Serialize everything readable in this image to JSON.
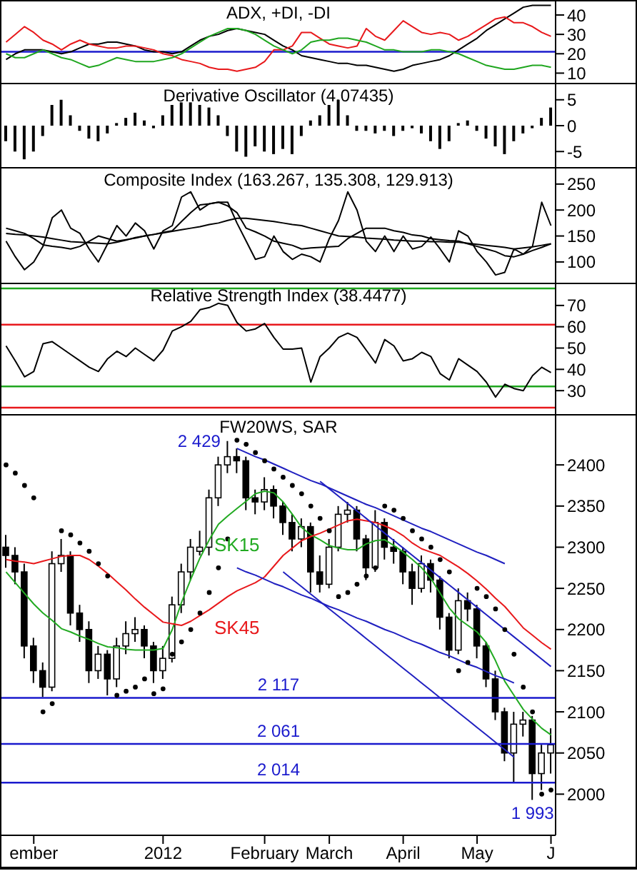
{
  "chart_data": [
    {
      "type": "line",
      "title": "ADX, +DI, -DI",
      "categories": [
        null,
        null,
        null,
        null,
        null,
        null,
        null,
        null,
        null,
        null,
        null,
        null,
        null,
        null,
        null,
        null,
        null,
        null,
        null,
        null,
        null,
        null,
        null,
        null,
        null,
        null,
        null,
        null,
        null,
        null,
        null,
        null,
        null,
        null,
        null,
        null,
        null,
        null,
        null,
        null,
        null,
        null,
        null,
        null,
        null,
        null,
        null,
        null,
        null,
        null,
        null,
        null,
        null,
        null,
        null,
        null,
        null,
        null,
        null,
        null
      ],
      "ylim": [
        5,
        47
      ],
      "yticks": [
        10,
        20,
        30,
        40
      ],
      "tick_labels": "y",
      "ref_lines": [
        {
          "axis": "y",
          "value": 21,
          "color": "#1a1acd"
        }
      ],
      "series": [
        {
          "color": "#000000",
          "values": [
            17,
            20,
            22,
            22,
            22,
            21,
            20,
            21,
            23,
            25,
            25,
            26,
            26,
            25,
            24,
            22,
            21,
            21,
            20,
            21,
            24,
            27,
            29,
            30,
            32,
            33,
            32,
            31,
            30,
            27,
            24,
            22,
            19,
            18,
            17,
            16,
            15,
            15,
            14,
            14,
            13,
            12,
            11,
            12,
            14,
            15,
            16,
            17,
            19,
            22,
            25,
            28,
            32,
            35,
            38,
            41,
            44,
            45,
            45,
            45
          ]
        },
        {
          "color": "#e8191c",
          "values": [
            26,
            30,
            34,
            31,
            27,
            25,
            22,
            25,
            27,
            25,
            24,
            23,
            23,
            24,
            24,
            23,
            22,
            20,
            19,
            17,
            16,
            15,
            13,
            12,
            12,
            11,
            12,
            13,
            16,
            22,
            22,
            24,
            31,
            31,
            28,
            25,
            24,
            23,
            24,
            33,
            29,
            27,
            32,
            37,
            34,
            31,
            30,
            31,
            30,
            27,
            29,
            32,
            35,
            38,
            39,
            36,
            36,
            34,
            31,
            29
          ]
        },
        {
          "color": "#1fa61f",
          "values": [
            20,
            18,
            18,
            20,
            22,
            20,
            18,
            17,
            15,
            13,
            14,
            16,
            18,
            17,
            16,
            16,
            16,
            17,
            18,
            20,
            23,
            26,
            29,
            31,
            33,
            33,
            32,
            30,
            27,
            24,
            22,
            20,
            22,
            26,
            27,
            27,
            28,
            28,
            27,
            26,
            24,
            22,
            22,
            21,
            21,
            21,
            22,
            22,
            21,
            20,
            18,
            16,
            14,
            13,
            12,
            12,
            13,
            14,
            14,
            13
          ]
        }
      ]
    },
    {
      "type": "bar",
      "title": "Derivative Oscillator (4.07435)",
      "categories": [
        null,
        null,
        null,
        null,
        null,
        null,
        null,
        null,
        null,
        null,
        null,
        null,
        null,
        null,
        null,
        null,
        null,
        null,
        null,
        null,
        null,
        null,
        null,
        null,
        null,
        null,
        null,
        null,
        null,
        null,
        null,
        null,
        null,
        null,
        null,
        null,
        null,
        null,
        null,
        null,
        null,
        null,
        null,
        null,
        null,
        null,
        null,
        null,
        null,
        null,
        null,
        null,
        null,
        null,
        null,
        null,
        null,
        null,
        null,
        null
      ],
      "ylim": [
        -8,
        8
      ],
      "yticks": [
        -5,
        0,
        5
      ],
      "tick_labels": "y",
      "color": "#000000",
      "values": [
        -3,
        -5,
        -6.5,
        -5,
        -2,
        4,
        5,
        2,
        -1,
        -2.5,
        -3,
        -1.5,
        0.5,
        1.5,
        2.5,
        1,
        -0.5,
        2,
        4,
        4.5,
        4.5,
        4,
        3.5,
        2,
        -2,
        -5,
        -6,
        -4,
        -5,
        -5.5,
        -4.5,
        -5.5,
        -2,
        1,
        2,
        4,
        5,
        2,
        -1,
        -1,
        -1.5,
        -1,
        -2,
        -1,
        -0.5,
        -1.5,
        -3,
        -4.5,
        -3,
        0.5,
        1,
        -1,
        -2.5,
        -4,
        -5.5,
        -3,
        -1.5,
        -0.5,
        1.5,
        3.5
      ]
    },
    {
      "type": "line",
      "title": "Composite Index (163.267, 135.308, 129.913)",
      "categories": [
        null,
        null,
        null,
        null,
        null,
        null,
        null,
        null,
        null,
        null,
        null,
        null,
        null,
        null,
        null,
        null,
        null,
        null,
        null,
        null,
        null,
        null,
        null,
        null,
        null,
        null,
        null,
        null,
        null,
        null,
        null,
        null,
        null,
        null,
        null,
        null,
        null,
        null,
        null,
        null,
        null,
        null,
        null,
        null,
        null,
        null,
        null,
        null,
        null,
        null,
        null,
        null,
        null,
        null,
        null,
        null,
        null,
        null,
        null,
        null
      ],
      "ylim": [
        60,
        280
      ],
      "yticks": [
        100,
        150,
        200,
        250
      ],
      "tick_labels": "y",
      "series": [
        {
          "color": "#000000",
          "values": [
            140,
            110,
            85,
            100,
            130,
            185,
            200,
            165,
            155,
            125,
            100,
            135,
            170,
            150,
            175,
            160,
            125,
            160,
            170,
            225,
            235,
            200,
            212,
            215,
            215,
            175,
            140,
            105,
            110,
            150,
            120,
            105,
            115,
            110,
            100,
            145,
            180,
            235,
            200,
            140,
            120,
            150,
            120,
            150,
            125,
            130,
            148,
            125,
            100,
            160,
            150,
            120,
            100,
            75,
            80,
            125,
            115,
            130,
            215,
            170
          ]
        },
        {
          "color": "#000000",
          "values": [
            165,
            160,
            155,
            145,
            133,
            130,
            128,
            125,
            130,
            140,
            150,
            145,
            140,
            143,
            146,
            150,
            153,
            157,
            160,
            178,
            195,
            210,
            212,
            215,
            208,
            195,
            165,
            158,
            150,
            140,
            136,
            132,
            125,
            127,
            128,
            129,
            130,
            145,
            155,
            165,
            165,
            165,
            160,
            157,
            152,
            150,
            145,
            143,
            141,
            140,
            135,
            130,
            125,
            120,
            112,
            110,
            115,
            122,
            128,
            135
          ]
        },
        {
          "color": "#000000",
          "values": [
            155,
            153,
            152,
            150,
            148,
            145,
            142,
            139,
            138,
            137,
            136,
            135,
            138,
            142,
            147,
            150,
            153,
            156,
            159,
            162,
            165,
            168,
            172,
            175,
            180,
            184,
            184,
            182,
            180,
            178,
            175,
            172,
            170,
            165,
            160,
            155,
            150,
            149,
            148,
            146,
            145,
            144,
            142,
            141,
            140,
            140,
            139,
            139,
            138,
            138,
            136,
            134,
            132,
            130,
            128,
            125,
            127,
            129,
            132,
            135
          ]
        }
      ]
    },
    {
      "type": "line",
      "title": "Relative Strength Index (38.4477)",
      "categories": [
        null,
        null,
        null,
        null,
        null,
        null,
        null,
        null,
        null,
        null,
        null,
        null,
        null,
        null,
        null,
        null,
        null,
        null,
        null,
        null,
        null,
        null,
        null,
        null,
        null,
        null,
        null,
        null,
        null,
        null,
        null,
        null,
        null,
        null,
        null,
        null,
        null,
        null,
        null,
        null,
        null,
        null,
        null,
        null,
        null,
        null,
        null,
        null,
        null,
        null,
        null,
        null,
        null,
        null,
        null,
        null,
        null,
        null,
        null,
        null
      ],
      "ylim": [
        19,
        80
      ],
      "yticks": [
        30,
        40,
        50,
        60,
        70
      ],
      "tick_labels": "y",
      "color": "#000000",
      "ref_lines": [
        {
          "axis": "y",
          "value": 78,
          "color": "#1fa61f"
        },
        {
          "axis": "y",
          "value": 61,
          "color": "#e8191c"
        },
        {
          "axis": "y",
          "value": 32,
          "color": "#1fa61f"
        },
        {
          "axis": "y",
          "value": 22,
          "color": "#e8191c"
        }
      ],
      "values": [
        51,
        44,
        36.5,
        39,
        52,
        53,
        50,
        47,
        44,
        41,
        39,
        45,
        48.5,
        46,
        50,
        47,
        44,
        49,
        58,
        60,
        62.5,
        68,
        69,
        71,
        70,
        62,
        58,
        59,
        61.5,
        55,
        49.5,
        49.5,
        50,
        34,
        46,
        50,
        55,
        57,
        55,
        49,
        43,
        54,
        51,
        44,
        45,
        48,
        46,
        38,
        35,
        45,
        42,
        39,
        34,
        27,
        33,
        31,
        30,
        37,
        41,
        38.5
      ]
    },
    {
      "type": "candlestick",
      "title": "FW20WS, SAR",
      "ylim": [
        1950,
        2460
      ],
      "yticks": [
        2000,
        2050,
        2100,
        2150,
        2200,
        2250,
        2300,
        2350,
        2400
      ],
      "categories": [
        null,
        null,
        null,
        "ember",
        null,
        null,
        null,
        null,
        null,
        null,
        null,
        null,
        null,
        null,
        null,
        null,
        null,
        "2012",
        null,
        null,
        null,
        null,
        null,
        null,
        null,
        null,
        null,
        null,
        "February",
        null,
        null,
        null,
        null,
        null,
        null,
        "March",
        null,
        null,
        null,
        null,
        null,
        null,
        null,
        "April",
        null,
        null,
        null,
        null,
        null,
        null,
        null,
        "May",
        null,
        null,
        null,
        null,
        null,
        null,
        null,
        "J"
      ],
      "ohlc": [
        [
          2300,
          2315,
          2275,
          2290
        ],
        [
          2290,
          2300,
          2255,
          2270
        ],
        [
          2270,
          2280,
          2165,
          2180
        ],
        [
          2180,
          2190,
          2135,
          2150
        ],
        [
          2150,
          2160,
          2118,
          2130
        ],
        [
          2130,
          2295,
          2125,
          2280
        ],
        [
          2280,
          2310,
          2270,
          2290
        ],
        [
          2290,
          2295,
          2205,
          2220
        ],
        [
          2220,
          2230,
          2185,
          2200
        ],
        [
          2200,
          2210,
          2135,
          2150
        ],
        [
          2150,
          2180,
          2140,
          2170
        ],
        [
          2170,
          2175,
          2120,
          2140
        ],
        [
          2140,
          2190,
          2130,
          2180
        ],
        [
          2180,
          2210,
          2170,
          2195
        ],
        [
          2195,
          2215,
          2185,
          2200
        ],
        [
          2200,
          2205,
          2165,
          2180
        ],
        [
          2180,
          2185,
          2135,
          2150
        ],
        [
          2150,
          2180,
          2140,
          2165
        ],
        [
          2165,
          2240,
          2160,
          2230
        ],
        [
          2230,
          2280,
          2220,
          2270
        ],
        [
          2270,
          2310,
          2260,
          2300
        ],
        [
          2295,
          2320,
          2290,
          2300
        ],
        [
          2300,
          2370,
          2290,
          2360
        ],
        [
          2360,
          2410,
          2350,
          2400
        ],
        [
          2400,
          2429,
          2390,
          2410
        ],
        [
          2410,
          2420,
          2390,
          2405
        ],
        [
          2405,
          2410,
          2345,
          2360
        ],
        [
          2360,
          2370,
          2340,
          2355
        ],
        [
          2355,
          2385,
          2345,
          2370
        ],
        [
          2370,
          2375,
          2335,
          2350
        ],
        [
          2350,
          2355,
          2315,
          2330
        ],
        [
          2330,
          2340,
          2295,
          2310
        ],
        [
          2310,
          2335,
          2300,
          2325
        ],
        [
          2325,
          2330,
          2245,
          2270
        ],
        [
          2270,
          2290,
          2245,
          2255
        ],
        [
          2255,
          2310,
          2250,
          2300
        ],
        [
          2300,
          2350,
          2295,
          2340
        ],
        [
          2340,
          2355,
          2330,
          2345
        ],
        [
          2345,
          2350,
          2295,
          2310
        ],
        [
          2310,
          2315,
          2260,
          2275
        ],
        [
          2275,
          2345,
          2270,
          2330
        ],
        [
          2330,
          2335,
          2285,
          2300
        ],
        [
          2300,
          2310,
          2280,
          2295
        ],
        [
          2295,
          2300,
          2255,
          2270
        ],
        [
          2270,
          2280,
          2230,
          2250
        ],
        [
          2250,
          2290,
          2245,
          2280
        ],
        [
          2280,
          2285,
          2245,
          2260
        ],
        [
          2260,
          2265,
          2200,
          2215
        ],
        [
          2215,
          2220,
          2165,
          2175
        ],
        [
          2175,
          2250,
          2170,
          2235
        ],
        [
          2235,
          2245,
          2210,
          2225
        ],
        [
          2225,
          2230,
          2165,
          2180
        ],
        [
          2180,
          2185,
          2130,
          2140
        ],
        [
          2140,
          2150,
          2090,
          2100
        ],
        [
          2100,
          2105,
          2040,
          2050
        ],
        [
          2050,
          2100,
          2015,
          2085
        ],
        [
          2085,
          2100,
          2070,
          2090
        ],
        [
          2090,
          2095,
          1993,
          2025
        ],
        [
          2025,
          2060,
          2005,
          2050
        ],
        [
          2050,
          2080,
          2025,
          2060
        ]
      ],
      "series": [
        {
          "name": "SK15",
          "type": "line",
          "color": "#22aa22",
          "values": [
            2270,
            2257,
            2244,
            2231,
            2220,
            2211,
            2201,
            2197,
            2192,
            2188,
            2183,
            2179,
            2178,
            2176,
            2175,
            2175,
            2175,
            2177,
            2200,
            2233,
            2261,
            2287,
            2309,
            2328,
            2338,
            2347,
            2356,
            2365,
            2368,
            2366,
            2355,
            2340,
            2324,
            2315,
            2309,
            2302,
            2299,
            2297,
            2297,
            2304,
            2308,
            2309,
            2302,
            2294,
            2285,
            2275,
            2262,
            2244,
            2226,
            2213,
            2205,
            2197,
            2184,
            2162,
            2137,
            2120,
            2103,
            2091,
            2080,
            2072
          ]
        },
        {
          "name": "SK45",
          "type": "line",
          "color": "#e8191c",
          "values": [
            2285,
            2283,
            2282,
            2280,
            2283,
            2286,
            2289,
            2290,
            2290,
            2285,
            2277,
            2268,
            2258,
            2248,
            2237,
            2227,
            2218,
            2209,
            2207,
            2205,
            2210,
            2217,
            2224,
            2232,
            2240,
            2247,
            2252,
            2257,
            2264,
            2277,
            2290,
            2299,
            2308,
            2313,
            2317,
            2322,
            2327,
            2332,
            2334,
            2332,
            2330,
            2326,
            2321,
            2314,
            2305,
            2298,
            2294,
            2290,
            2283,
            2276,
            2268,
            2259,
            2249,
            2238,
            2228,
            2215,
            2202,
            2193,
            2184,
            2176
          ]
        },
        {
          "type": "scatter",
          "marker": "circle",
          "color": "#000000",
          "values": [
            2400,
            2390,
            2375,
            2360,
            2100,
            2110,
            2320,
            2315,
            2305,
            2295,
            2280,
            2265,
            2120,
            2125,
            2130,
            2140,
            2122,
            2128,
            2170,
            2185,
            2200,
            2220,
            2245,
            2275,
            2310,
            2430,
            2425,
            2415,
            2405,
            2395,
            2385,
            2375,
            2365,
            2350,
            2335,
            2320,
            2240,
            2245,
            2255,
            2265,
            2275,
            2350,
            2345,
            2335,
            2320,
            2310,
            2300,
            2285,
            2270,
            2150,
            2160,
            2250,
            2240,
            2225,
            2200,
            2170,
            2130,
            2100,
            2000,
            2005
          ]
        },
        {
          "type": "line",
          "color": "#2020c0",
          "values": [
            null,
            null,
            null,
            null,
            null,
            null,
            null,
            null,
            null,
            null,
            null,
            null,
            null,
            null,
            null,
            null,
            null,
            null,
            null,
            null,
            null,
            null,
            null,
            null,
            null,
            2420,
            2415,
            2410,
            2406,
            2401,
            2396,
            2391,
            2386,
            2381,
            2377,
            2372,
            2367,
            2362,
            2357,
            2352,
            2348,
            2343,
            2338,
            2333,
            2328,
            2323,
            2319,
            2314,
            2309,
            2304,
            2299,
            2294,
            2290,
            2285,
            2280,
            null,
            null,
            null,
            null,
            null
          ]
        },
        {
          "type": "line",
          "color": "#2020c0",
          "values": [
            null,
            null,
            null,
            null,
            null,
            null,
            null,
            null,
            null,
            null,
            null,
            null,
            null,
            null,
            null,
            null,
            null,
            null,
            null,
            null,
            null,
            null,
            null,
            null,
            null,
            null,
            null,
            null,
            null,
            null,
            null,
            null,
            null,
            null,
            2380,
            2371,
            2362,
            2353,
            2344,
            2335,
            2326,
            2317,
            2308,
            2299,
            2290,
            2281,
            2272,
            2263,
            2254,
            2245,
            2236,
            2227,
            2218,
            2209,
            2200,
            2191,
            2182,
            2173,
            2164,
            2155
          ]
        },
        {
          "type": "line",
          "color": "#2020c0",
          "values": [
            null,
            null,
            null,
            null,
            null,
            null,
            null,
            null,
            null,
            null,
            null,
            null,
            null,
            null,
            null,
            null,
            null,
            null,
            null,
            null,
            null,
            null,
            null,
            null,
            null,
            2275,
            2270,
            2266,
            2261,
            2256,
            2252,
            2247,
            2242,
            2238,
            2233,
            2228,
            2224,
            2219,
            2214,
            2210,
            2205,
            2200,
            2196,
            2191,
            2186,
            2182,
            2177,
            2172,
            2168,
            2163,
            2158,
            2154,
            2149,
            2144,
            2140,
            2135,
            null,
            null,
            null,
            null
          ]
        },
        {
          "type": "line",
          "color": "#2020c0",
          "values": [
            null,
            null,
            null,
            null,
            null,
            null,
            null,
            null,
            null,
            null,
            null,
            null,
            null,
            null,
            null,
            null,
            null,
            null,
            null,
            null,
            null,
            null,
            null,
            null,
            null,
            null,
            null,
            null,
            null,
            null,
            2270,
            2261,
            2252,
            2243,
            2234,
            2225,
            2216,
            2207,
            2198,
            2189,
            2180,
            2171,
            2162,
            2153,
            2144,
            2135,
            2126,
            2117,
            2108,
            2099,
            2090,
            2081,
            2072,
            2063,
            2054,
            2045,
            null,
            null,
            null,
            null
          ]
        }
      ],
      "ref_lines": [
        {
          "axis": "y",
          "value": 2117,
          "label": "2 117",
          "color": "#1a1acd"
        },
        {
          "axis": "y",
          "value": 2061,
          "label": "2 061",
          "color": "#1a1acd"
        },
        {
          "axis": "y",
          "value": 2014,
          "label": "2 014",
          "color": "#1a1acd"
        }
      ],
      "annotations": [
        "2 429",
        "1 993"
      ]
    }
  ]
}
